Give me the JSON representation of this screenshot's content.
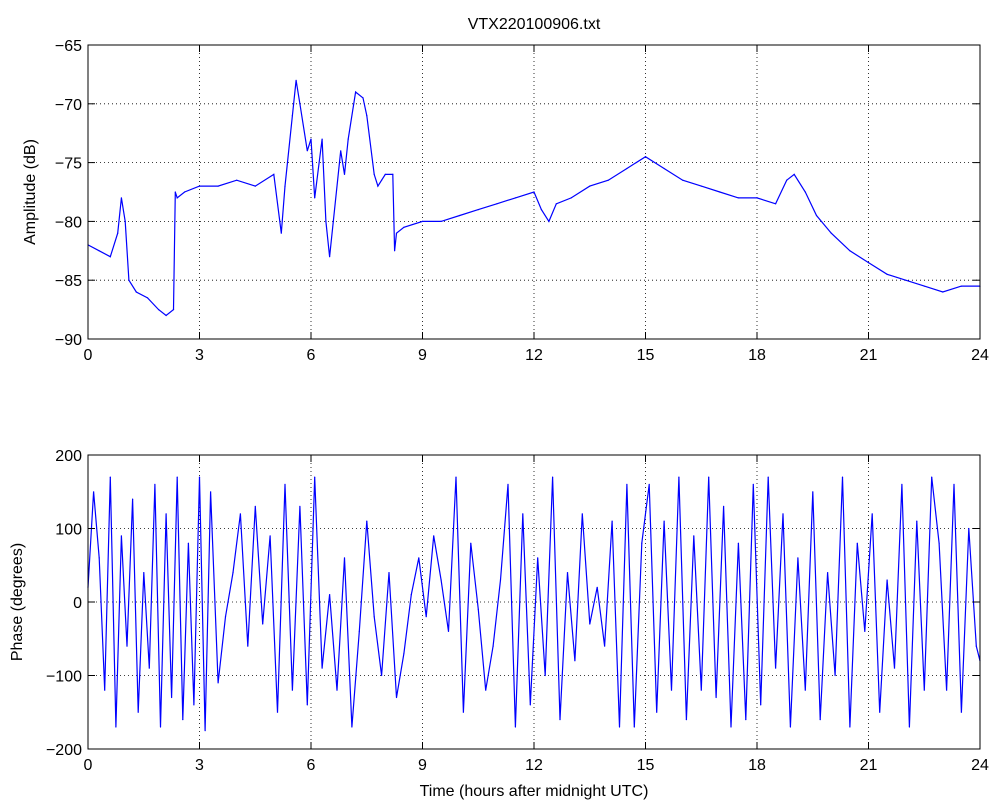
{
  "chart_data": [
    {
      "type": "line",
      "title": "VTX220100906.txt",
      "xlabel": "",
      "ylabel": "Amplitude (dB)",
      "xlim": [
        0,
        24
      ],
      "ylim": [
        -90,
        -65
      ],
      "xticks": [
        0,
        3,
        6,
        9,
        12,
        15,
        18,
        21,
        24
      ],
      "yticks": [
        -65,
        -70,
        -75,
        -80,
        -85,
        -90
      ],
      "grid": true,
      "series": [
        {
          "color": "#0000ff",
          "x": [
            0,
            0.3,
            0.6,
            0.8,
            0.9,
            1.0,
            1.1,
            1.3,
            1.6,
            1.9,
            2.1,
            2.3,
            2.35,
            2.4,
            2.6,
            3.0,
            3.5,
            4.0,
            4.5,
            5.0,
            5.2,
            5.3,
            5.5,
            5.6,
            5.7,
            5.9,
            6.0,
            6.1,
            6.3,
            6.4,
            6.5,
            6.6,
            6.8,
            6.9,
            7.0,
            7.2,
            7.4,
            7.5,
            7.7,
            7.8,
            7.9,
            8.0,
            8.2,
            8.25,
            8.3,
            8.5,
            9.0,
            9.5,
            10.0,
            10.5,
            11.0,
            11.5,
            12.0,
            12.2,
            12.4,
            12.6,
            13.0,
            13.5,
            14.0,
            14.5,
            15.0,
            15.5,
            16.0,
            16.5,
            17.0,
            17.5,
            18.0,
            18.5,
            18.8,
            19.0,
            19.3,
            19.6,
            20.0,
            20.5,
            21.0,
            21.5,
            22.0,
            22.5,
            23.0,
            23.5,
            24.0
          ],
          "values": [
            -82,
            -82.5,
            -83,
            -81,
            -78,
            -80,
            -85,
            -86,
            -86.5,
            -87.5,
            -88,
            -87.5,
            -77.5,
            -78,
            -77.5,
            -77,
            -77,
            -76.5,
            -77,
            -76,
            -81,
            -77,
            -71,
            -68,
            -70,
            -74,
            -73,
            -78,
            -73,
            -80,
            -83,
            -80,
            -74,
            -76,
            -73,
            -69,
            -69.5,
            -71,
            -76,
            -77,
            -76.5,
            -76,
            -76,
            -82.5,
            -81,
            -80.5,
            -80,
            -80,
            -79.5,
            -79,
            -78.5,
            -78,
            -77.5,
            -79,
            -80,
            -78.5,
            -78,
            -77,
            -76.5,
            -75.5,
            -74.5,
            -75.5,
            -76.5,
            -77,
            -77.5,
            -78,
            -78,
            -78.5,
            -76.5,
            -76,
            -77.5,
            -79.5,
            -81,
            -82.5,
            -83.5,
            -84.5,
            -85,
            -85.5,
            -86,
            -85.5,
            -85.5
          ]
        }
      ]
    },
    {
      "type": "line",
      "title": "",
      "xlabel": "Time (hours after midnight UTC)",
      "ylabel": "Phase (degrees)",
      "xlim": [
        0,
        24
      ],
      "ylim": [
        -200,
        200
      ],
      "xticks": [
        0,
        3,
        6,
        9,
        12,
        15,
        18,
        21,
        24
      ],
      "yticks": [
        200,
        100,
        0,
        -100,
        -200
      ],
      "grid": true,
      "series": [
        {
          "color": "#0000ff",
          "note_values_wrap": [
            -180,
            180
          ],
          "x": [
            0,
            0.15,
            0.3,
            0.45,
            0.6,
            0.75,
            0.9,
            1.05,
            1.2,
            1.35,
            1.5,
            1.65,
            1.8,
            1.95,
            2.1,
            2.25,
            2.4,
            2.55,
            2.7,
            2.85,
            3.0,
            3.15,
            3.3,
            3.5,
            3.7,
            3.9,
            4.1,
            4.3,
            4.5,
            4.7,
            4.9,
            5.1,
            5.3,
            5.5,
            5.7,
            5.9,
            6.1,
            6.3,
            6.5,
            6.7,
            6.9,
            7.1,
            7.3,
            7.5,
            7.7,
            7.9,
            8.1,
            8.3,
            8.5,
            8.7,
            8.9,
            9.1,
            9.3,
            9.5,
            9.7,
            9.9,
            10.1,
            10.3,
            10.5,
            10.7,
            10.9,
            11.1,
            11.3,
            11.5,
            11.7,
            11.9,
            12.1,
            12.3,
            12.5,
            12.7,
            12.9,
            13.1,
            13.3,
            13.5,
            13.7,
            13.9,
            14.1,
            14.3,
            14.5,
            14.7,
            14.9,
            15.1,
            15.3,
            15.5,
            15.7,
            15.9,
            16.1,
            16.3,
            16.5,
            16.7,
            16.9,
            17.1,
            17.3,
            17.5,
            17.7,
            17.9,
            18.1,
            18.3,
            18.5,
            18.7,
            18.9,
            19.1,
            19.3,
            19.5,
            19.7,
            19.9,
            20.1,
            20.3,
            20.5,
            20.7,
            20.9,
            21.1,
            21.3,
            21.5,
            21.7,
            21.9,
            22.1,
            22.3,
            22.5,
            22.7,
            22.9,
            23.1,
            23.3,
            23.5,
            23.7,
            23.9,
            24.0
          ],
          "values": [
            20,
            150,
            60,
            -120,
            170,
            -170,
            90,
            -60,
            140,
            -150,
            40,
            -90,
            160,
            -170,
            120,
            -130,
            170,
            -160,
            80,
            -140,
            170,
            -175,
            150,
            -110,
            -20,
            40,
            120,
            -60,
            130,
            -30,
            90,
            -150,
            160,
            -120,
            130,
            -140,
            170,
            -90,
            10,
            -120,
            60,
            -170,
            -40,
            110,
            -20,
            -100,
            40,
            -130,
            -70,
            10,
            60,
            -20,
            90,
            30,
            -40,
            170,
            -150,
            80,
            -10,
            -120,
            -60,
            30,
            160,
            -170,
            120,
            -140,
            60,
            -100,
            170,
            -160,
            40,
            -80,
            120,
            -30,
            20,
            -60,
            110,
            -170,
            160,
            -170,
            80,
            160,
            -150,
            110,
            -120,
            170,
            -160,
            90,
            -120,
            170,
            -130,
            130,
            -170,
            80,
            -160,
            160,
            -140,
            170,
            -90,
            120,
            -170,
            60,
            -120,
            150,
            -160,
            40,
            -100,
            170,
            -170,
            80,
            -40,
            120,
            -150,
            30,
            -90,
            160,
            -170,
            110,
            -120,
            170,
            80,
            -120,
            160,
            -150,
            100,
            -60,
            -80
          ]
        }
      ]
    }
  ]
}
